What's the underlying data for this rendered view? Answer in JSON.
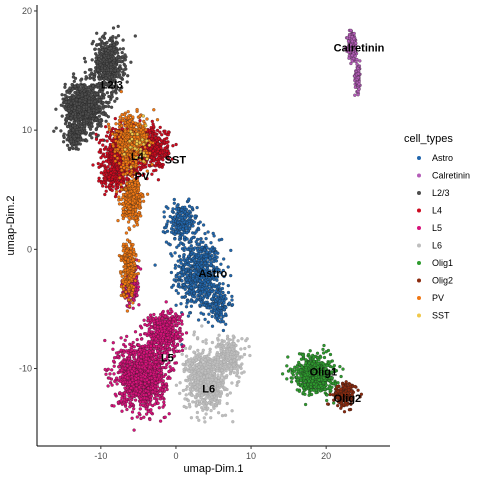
{
  "chart_data": {
    "type": "scatter",
    "title": "",
    "xlabel": "umap-Dim.1",
    "ylabel": "umap-Dim.2",
    "xlim": [
      -18.5,
      28.5
    ],
    "ylim": [
      -16.5,
      20.5
    ],
    "xticks": [
      -10,
      0,
      10,
      20
    ],
    "yticks": [
      -10,
      0,
      10,
      20
    ],
    "grid": false,
    "legend_position": "right",
    "legend_title": "cell_types",
    "series": [
      {
        "name": "Astro",
        "color": "#2166AC",
        "clusters": [
          {
            "center": [
              3.0,
              -2.0
            ],
            "spread": [
              2.6,
              2.6
            ],
            "count": 600
          },
          {
            "center": [
              0.8,
              2.2
            ],
            "spread": [
              1.8,
              1.5
            ],
            "count": 220
          },
          {
            "center": [
              5.5,
              -4.5
            ],
            "spread": [
              1.6,
              1.6
            ],
            "count": 160
          }
        ]
      },
      {
        "name": "Calretinin",
        "color": "#B45DB8",
        "clusters": [
          {
            "center": [
              23.5,
              17.0
            ],
            "spread": [
              0.6,
              1.2
            ],
            "count": 140
          },
          {
            "center": [
              24.2,
              14.5
            ],
            "spread": [
              0.35,
              1.2
            ],
            "count": 80
          }
        ]
      },
      {
        "name": "L2/3",
        "color": "#4D4D4D",
        "clusters": [
          {
            "center": [
              -12.2,
              12.0
            ],
            "spread": [
              2.3,
              1.8
            ],
            "count": 900
          },
          {
            "center": [
              -9.0,
              15.5
            ],
            "spread": [
              1.8,
              2.0
            ],
            "count": 500
          },
          {
            "center": [
              -13.5,
              9.5
            ],
            "spread": [
              1.2,
              1.0
            ],
            "count": 150
          }
        ]
      },
      {
        "name": "L4",
        "color": "#CC0A1F",
        "clusters": [
          {
            "center": [
              -7.0,
              8.0
            ],
            "spread": [
              2.2,
              1.8
            ],
            "count": 700
          },
          {
            "center": [
              -3.0,
              8.5
            ],
            "spread": [
              1.8,
              1.5
            ],
            "count": 400
          },
          {
            "center": [
              -8.5,
              6.0
            ],
            "spread": [
              1.4,
              1.0
            ],
            "count": 150
          }
        ]
      },
      {
        "name": "L5",
        "color": "#D6127A",
        "clusters": [
          {
            "center": [
              -4.5,
              -10.5
            ],
            "spread": [
              2.8,
              2.4
            ],
            "count": 1300
          },
          {
            "center": [
              -1.5,
              -7.0
            ],
            "spread": [
              2.0,
              1.6
            ],
            "count": 500
          },
          {
            "center": [
              -6.0,
              -3.0
            ],
            "spread": [
              1.0,
              1.6
            ],
            "count": 180
          }
        ]
      },
      {
        "name": "L6",
        "color": "#BEBEBE",
        "clusters": [
          {
            "center": [
              4.0,
              -11.0
            ],
            "spread": [
              2.4,
              2.2
            ],
            "count": 700
          },
          {
            "center": [
              7.0,
              -9.0
            ],
            "spread": [
              1.6,
              1.4
            ],
            "count": 250
          }
        ]
      },
      {
        "name": "Olig1",
        "color": "#2E9B2E",
        "clusters": [
          {
            "center": [
              18.5,
              -10.5
            ],
            "spread": [
              2.4,
              1.4
            ],
            "count": 600
          }
        ]
      },
      {
        "name": "Olig2",
        "color": "#8B2A0E",
        "clusters": [
          {
            "center": [
              22.5,
              -12.2
            ],
            "spread": [
              1.3,
              0.9
            ],
            "count": 180
          }
        ]
      },
      {
        "name": "PV",
        "color": "#F07814",
        "clusters": [
          {
            "center": [
              -6.0,
              9.0
            ],
            "spread": [
              2.0,
              2.0
            ],
            "count": 500
          },
          {
            "center": [
              -5.8,
              4.0
            ],
            "spread": [
              1.2,
              1.5
            ],
            "count": 350
          },
          {
            "center": [
              -6.3,
              -1.5
            ],
            "spread": [
              0.9,
              2.2
            ],
            "count": 250
          }
        ]
      },
      {
        "name": "SST",
        "color": "#F0C84A",
        "clusters": [
          {
            "center": [
              -5.0,
              8.5
            ],
            "spread": [
              1.5,
              1.5
            ],
            "count": 30
          }
        ]
      }
    ],
    "annotations": [
      {
        "text": "Calretinin",
        "x": 21.0,
        "y": 16.6
      },
      {
        "text": "L2/3",
        "x": -10.0,
        "y": 13.5
      },
      {
        "text": "L4",
        "x": -6.0,
        "y": 7.5
      },
      {
        "text": "SST",
        "x": -1.5,
        "y": 7.2
      },
      {
        "text": "PV",
        "x": -5.5,
        "y": 5.8
      },
      {
        "text": "Astro",
        "x": 3.0,
        "y": -2.3
      },
      {
        "text": "L5",
        "x": -2.0,
        "y": -9.4
      },
      {
        "text": "L6",
        "x": 3.5,
        "y": -12.0
      },
      {
        "text": "Olig1",
        "x": 17.8,
        "y": -10.6
      },
      {
        "text": "Olig2",
        "x": 21.0,
        "y": -12.8
      }
    ]
  }
}
